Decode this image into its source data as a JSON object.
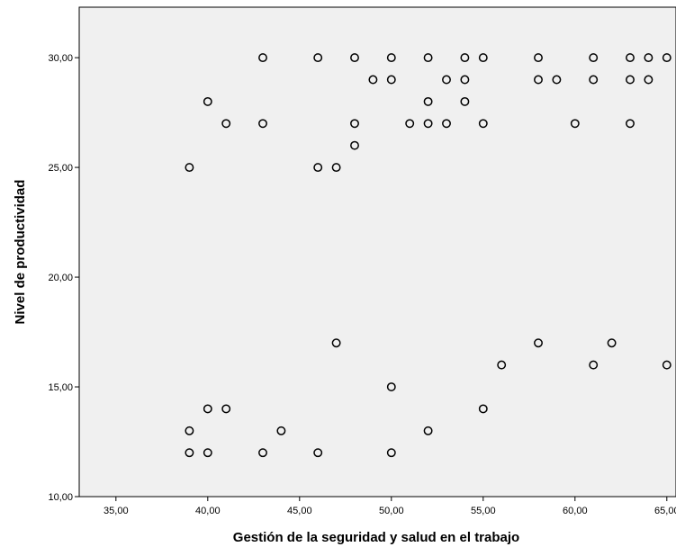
{
  "chart_data": {
    "type": "scatter",
    "title": "",
    "xlabel": "Gestión de la seguridad y salud en el trabajo",
    "ylabel": "Nivel de productividad",
    "xlim": [
      33,
      65.5
    ],
    "ylim": [
      10,
      32.3
    ],
    "x_ticks": [
      "35,00",
      "40,00",
      "45,00",
      "50,00",
      "55,00",
      "60,00",
      "65,00"
    ],
    "y_ticks": [
      "10,00",
      "15,00",
      "20,00",
      "25,00",
      "30,00"
    ],
    "grid": false,
    "marker": "hollow-circle",
    "series": [
      {
        "points": [
          [
            43,
            30
          ],
          [
            46,
            30
          ],
          [
            48,
            30
          ],
          [
            50,
            30
          ],
          [
            52,
            30
          ],
          [
            54,
            30
          ],
          [
            55,
            30
          ],
          [
            58,
            30
          ],
          [
            61,
            30
          ],
          [
            63,
            30
          ],
          [
            64,
            30
          ],
          [
            65,
            30
          ],
          [
            49,
            29
          ],
          [
            50,
            29
          ],
          [
            53,
            29
          ],
          [
            54,
            29
          ],
          [
            58,
            29
          ],
          [
            59,
            29
          ],
          [
            61,
            29
          ],
          [
            63,
            29
          ],
          [
            64,
            29
          ],
          [
            40,
            28
          ],
          [
            52,
            28
          ],
          [
            54,
            28
          ],
          [
            41,
            27
          ],
          [
            43,
            27
          ],
          [
            48,
            27
          ],
          [
            51,
            27
          ],
          [
            52,
            27
          ],
          [
            53,
            27
          ],
          [
            55,
            27
          ],
          [
            60,
            27
          ],
          [
            63,
            27
          ],
          [
            48,
            26
          ],
          [
            39,
            25
          ],
          [
            46,
            25
          ],
          [
            47,
            25
          ],
          [
            47,
            17
          ],
          [
            58,
            17
          ],
          [
            62,
            17
          ],
          [
            56,
            16
          ],
          [
            61,
            16
          ],
          [
            65,
            16
          ],
          [
            50,
            15
          ],
          [
            40,
            14
          ],
          [
            41,
            14
          ],
          [
            55,
            14
          ],
          [
            39,
            13
          ],
          [
            44,
            13
          ],
          [
            52,
            13
          ],
          [
            39,
            12
          ],
          [
            40,
            12
          ],
          [
            43,
            12
          ],
          [
            46,
            12
          ],
          [
            50,
            12
          ]
        ]
      }
    ]
  }
}
